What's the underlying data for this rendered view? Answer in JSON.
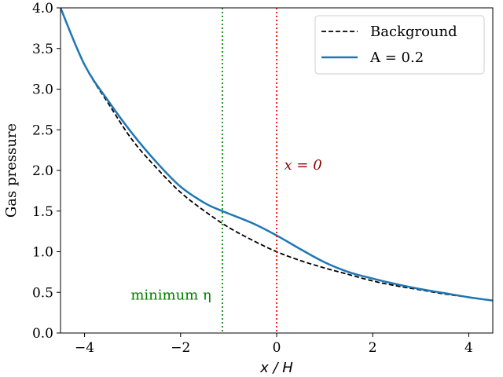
{
  "chart_data": {
    "type": "line",
    "xlabel": "x / H",
    "ylabel": "Gas pressure",
    "xlim": [
      -4.5,
      4.5
    ],
    "ylim": [
      0,
      4.0
    ],
    "xticks": [
      -4,
      -2,
      0,
      2,
      4
    ],
    "xtick_labels": [
      "−4",
      "−2",
      "0",
      "2",
      "4"
    ],
    "yticks": [
      0.0,
      0.5,
      1.0,
      1.5,
      2.0,
      2.5,
      3.0,
      3.5,
      4.0
    ],
    "ytick_labels": [
      "0.0",
      "0.5",
      "1.0",
      "1.5",
      "2.0",
      "2.5",
      "3.0",
      "3.5",
      "4.0"
    ],
    "grid": false,
    "legend_position": "top-right",
    "series": [
      {
        "name": "Background",
        "style": "dashed",
        "color": "#000000",
        "x": [
          -4.5,
          -4.0,
          -3.5,
          -3.0,
          -2.5,
          -2.0,
          -1.5,
          -1.0,
          -0.5,
          0.0,
          0.5,
          1.0,
          1.5,
          2.0,
          2.5,
          3.0,
          3.5,
          4.0,
          4.5
        ],
        "y": [
          4.0,
          3.3,
          2.82,
          2.37,
          2.03,
          1.73,
          1.5,
          1.3,
          1.14,
          1.0,
          0.89,
          0.8,
          0.72,
          0.64,
          0.58,
          0.53,
          0.48,
          0.44,
          0.4
        ]
      },
      {
        "name": "A = 0.2",
        "style": "solid",
        "color": "#1f77b4",
        "x": [
          -4.5,
          -4.0,
          -3.5,
          -3.0,
          -2.5,
          -2.0,
          -1.5,
          -1.13,
          -0.5,
          0.0,
          0.5,
          1.0,
          1.5,
          2.0,
          2.5,
          3.0,
          3.5,
          4.0,
          4.5
        ],
        "y": [
          4.0,
          3.3,
          2.85,
          2.45,
          2.1,
          1.8,
          1.6,
          1.5,
          1.35,
          1.2,
          1.03,
          0.87,
          0.75,
          0.67,
          0.6,
          0.54,
          0.49,
          0.44,
          0.4
        ]
      }
    ],
    "vlines": [
      {
        "x": -1.13,
        "color": "#008000",
        "style": "dotted",
        "label": "minimum η",
        "label_x": -2.2,
        "label_y": 0.47
      },
      {
        "x": 0.0,
        "color": "#ff0000",
        "style": "dotted",
        "label": "x = 0",
        "label_color": "#8b0000",
        "label_x": 0.55,
        "label_y": 2.07
      }
    ]
  }
}
